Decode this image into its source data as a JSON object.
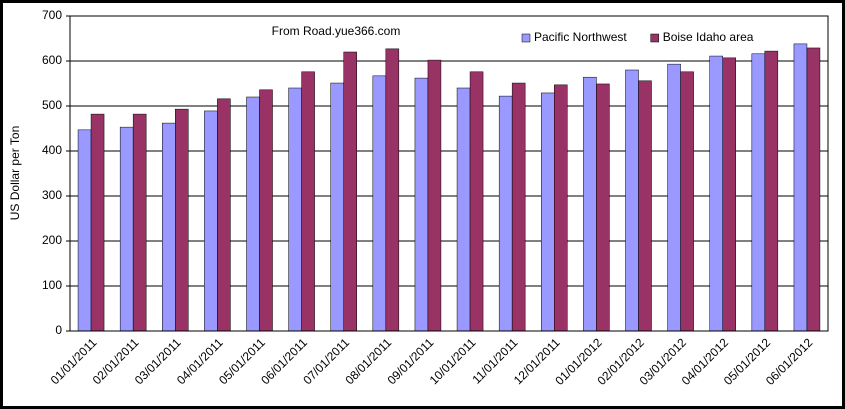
{
  "chart_data": {
    "type": "bar",
    "annotation": "From Road.yue366.com",
    "y_label": "US Dollar per Ton",
    "categories": [
      "01/01/2011",
      "02/01/2011",
      "03/01/2011",
      "04/01/2011",
      "05/01/2011",
      "06/01/2011",
      "07/01/2011",
      "08/01/2011",
      "09/01/2011",
      "10/01/2011",
      "11/01/2011",
      "12/01/2011",
      "01/01/2012",
      "02/01/2012",
      "03/01/2012",
      "04/01/2012",
      "05/01/2012",
      "06/01/2012"
    ],
    "series": [
      {
        "name": "Pacific Northwest",
        "color": "#9999ff",
        "values": [
          447,
          453,
          462,
          489,
          520,
          540,
          551,
          567,
          562,
          540,
          522,
          529,
          564,
          580,
          593,
          611,
          616,
          638
        ]
      },
      {
        "name": "Boise Idaho area",
        "color": "#993366",
        "values": [
          482,
          482,
          493,
          516,
          536,
          576,
          620,
          627,
          602,
          576,
          551,
          547,
          549,
          556,
          576,
          607,
          622,
          629
        ]
      }
    ],
    "ylim": [
      0,
      700
    ],
    "yticks": [
      0,
      100,
      200,
      300,
      400,
      500,
      600,
      700
    ],
    "grid": true,
    "legend": "top-right"
  }
}
